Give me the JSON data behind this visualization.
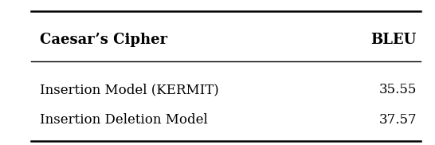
{
  "col1_header": "Caesar’s Cipher",
  "col2_header": "BLEU",
  "rows": [
    [
      "Insertion Model (KERMIT)",
      "35.55"
    ],
    [
      "Insertion Deletion Model",
      "37.57"
    ]
  ],
  "bg_color": "#f0f0f0",
  "table_bg": "#ffffff",
  "header_fontsize": 13,
  "row_fontsize": 12,
  "figsize": [
    5.46,
    1.82
  ],
  "dpi": 100
}
